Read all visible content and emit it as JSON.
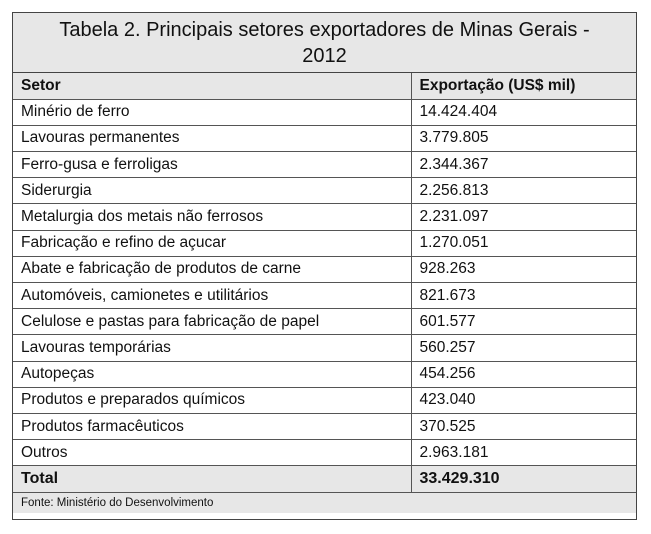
{
  "table": {
    "title": "Tabela 2. Principais setores exportadores de Minas Gerais - 2012",
    "columns": [
      "Setor",
      "Exportação (US$ mil)"
    ],
    "rows": [
      [
        "Minério de ferro",
        "14.424.404"
      ],
      [
        "Lavouras permanentes",
        "3.779.805"
      ],
      [
        "Ferro-gusa e ferroligas",
        "2.344.367"
      ],
      [
        "Siderurgia",
        "2.256.813"
      ],
      [
        "Metalurgia dos metais não ferrosos",
        "2.231.097"
      ],
      [
        "Fabricação e refino de açucar",
        "1.270.051"
      ],
      [
        "Abate e fabricação de produtos de carne",
        "928.263"
      ],
      [
        "Automóveis, camionetes e utilitários",
        "821.673"
      ],
      [
        "Celulose e pastas para fabricação de papel",
        "601.577"
      ],
      [
        "Lavouras temporárias",
        "560.257"
      ],
      [
        "Autopeças",
        "454.256"
      ],
      [
        "Produtos e preparados químicos",
        "423.040"
      ],
      [
        "Produtos farmacêuticos",
        "370.525"
      ],
      [
        "Outros",
        "2.963.181"
      ]
    ],
    "total": [
      "Total",
      "33.429.310"
    ],
    "source": "Fonte: Ministério do Desenvolvimento"
  }
}
